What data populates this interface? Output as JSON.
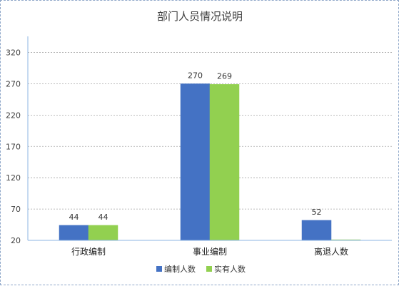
{
  "chart_data": {
    "type": "bar",
    "title": "部门人员情况说明",
    "categories": [
      "行政编制",
      "事业编制",
      "离退人数"
    ],
    "series": [
      {
        "name": "编制人数",
        "values": [
          44,
          270,
          52
        ],
        "color": "#4472C4"
      },
      {
        "name": "实有人数",
        "values": [
          44,
          269,
          21
        ],
        "color": "#92D050"
      }
    ],
    "data_labels": [
      [
        "44",
        "270",
        "52"
      ],
      [
        "44",
        "269",
        ""
      ]
    ],
    "ylim": [
      20,
      340
    ],
    "yticks": [
      20,
      70,
      120,
      170,
      220,
      270,
      320
    ],
    "grid": true,
    "legend_position": "bottom"
  }
}
